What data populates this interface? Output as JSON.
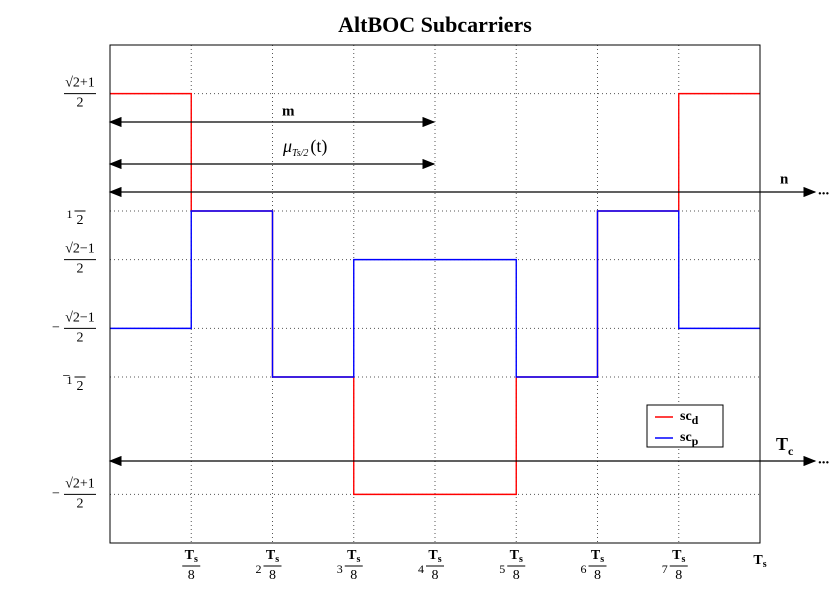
{
  "chart_data": {
    "type": "line",
    "step": "post",
    "title": "AltBOC Subcarriers",
    "x": [
      0,
      0.125,
      0.25,
      0.375,
      0.5,
      0.625,
      0.75,
      0.875,
      1
    ],
    "series": [
      {
        "name": "sc",
        "name_sub": "d",
        "color": "#ff0000",
        "values": [
          1.2071,
          0.5,
          -0.5,
          -1.2071,
          -1.2071,
          -0.5,
          0.5,
          1.2071,
          1.2071
        ]
      },
      {
        "name": "sc",
        "name_sub": "p",
        "color": "#0000ff",
        "values": [
          -0.2071,
          0.5,
          -0.5,
          0.2071,
          0.2071,
          -0.5,
          0.5,
          -0.2071,
          -0.2071
        ]
      }
    ],
    "xlim": [
      0,
      1
    ],
    "xticks": [
      {
        "value": 0.125,
        "label": "Ts/8"
      },
      {
        "value": 0.25,
        "label": "2Ts/8"
      },
      {
        "value": 0.375,
        "label": "3Ts/8"
      },
      {
        "value": 0.5,
        "label": "4Ts/8"
      },
      {
        "value": 0.625,
        "label": "5Ts/8"
      },
      {
        "value": 0.75,
        "label": "6Ts/8"
      },
      {
        "value": 0.875,
        "label": "7Ts/8"
      },
      {
        "value": 1,
        "label": "Ts"
      }
    ],
    "ylim": [
      -1.5,
      1.5
    ],
    "yticks": [
      {
        "value": 1.2071,
        "label": "√2+1/2"
      },
      {
        "value": 0.5,
        "label": "1/2"
      },
      {
        "value": 0.2071,
        "label": "√2−1/2"
      },
      {
        "value": -0.2071,
        "label": "−√2−1/2"
      },
      {
        "value": -0.5,
        "label": "−1/2"
      },
      {
        "value": -1.2071,
        "label": "−√2+1/2"
      }
    ],
    "grid": true,
    "legend": "lower right",
    "annotations": {
      "m": "m",
      "mu": "μ",
      "mu_sub": "Ts/2",
      "mu_arg": "(t)",
      "n": "n",
      "tc": "T",
      "tc_sub": "c",
      "more": "..."
    }
  }
}
